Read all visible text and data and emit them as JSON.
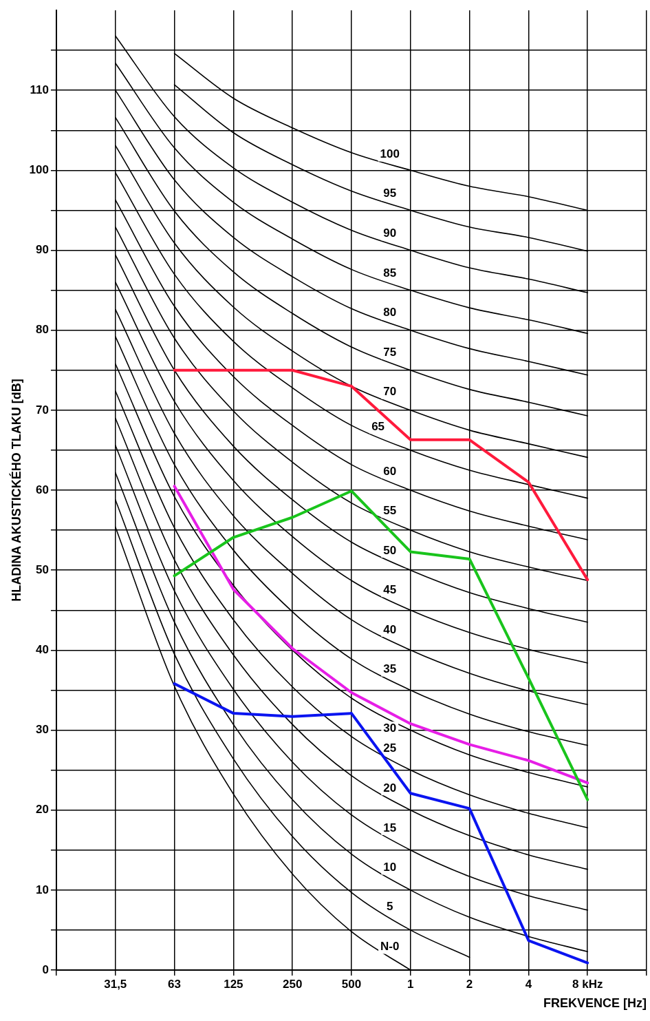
{
  "chart_data": {
    "type": "line",
    "xlabel": "FREKVENCE [Hz]",
    "ylabel": "HLADINA AKUSTICKÉHO TLAKU [dB]",
    "categories": [
      null,
      "31,5",
      "63",
      "125",
      "250",
      "500",
      "1",
      "2",
      "4",
      "8 kHz",
      null
    ],
    "ylim": [
      0,
      120
    ],
    "yticks": [
      0,
      {
        "value": 5,
        "label": null
      },
      10,
      {
        "value": 15,
        "label": null
      },
      20,
      {
        "value": 25,
        "label": null
      },
      30,
      {
        "value": 35,
        "label": null
      },
      40,
      {
        "value": 45,
        "label": null
      },
      50,
      {
        "value": 55,
        "label": null
      },
      60,
      {
        "value": 65,
        "label": null
      },
      70,
      {
        "value": 75,
        "label": null
      },
      80,
      {
        "value": 85,
        "label": null
      },
      90,
      {
        "value": 95,
        "label": null
      },
      100,
      {
        "value": 105,
        "label": null
      },
      110,
      {
        "value": 115,
        "label": null
      }
    ],
    "grid": true,
    "legend": false,
    "marker": "none",
    "line_style": "solid",
    "series": [
      {
        "name": "N-0",
        "color": "#000000",
        "values": [
          null,
          55.4,
          35.5,
          22.0,
          12.0,
          4.8,
          0,
          null,
          null,
          null,
          null
        ]
      },
      {
        "name": "5",
        "color": "#000000",
        "values": [
          null,
          58.8,
          39.5,
          26.4,
          16.7,
          9.7,
          5,
          1.6,
          null,
          null,
          null
        ]
      },
      {
        "name": "10",
        "color": "#000000",
        "values": [
          null,
          62.2,
          43.5,
          30.7,
          21.3,
          14.5,
          10,
          6.6,
          4.2,
          2.3,
          null
        ]
      },
      {
        "name": "15",
        "color": "#000000",
        "values": [
          null,
          65.6,
          47.4,
          35.1,
          26.0,
          19.4,
          15,
          11.7,
          9.3,
          7.5,
          null
        ]
      },
      {
        "name": "20",
        "color": "#000000",
        "values": [
          null,
          69.0,
          51.3,
          39.4,
          30.7,
          24.3,
          20,
          16.8,
          14.4,
          12.6,
          null
        ]
      },
      {
        "name": "25",
        "color": "#000000",
        "values": [
          null,
          72.4,
          55.3,
          43.8,
          35.4,
          29.2,
          25,
          21.9,
          19.6,
          17.8,
          null
        ]
      },
      {
        "name": "30",
        "color": "#000000",
        "values": [
          null,
          75.8,
          59.2,
          48.1,
          40.0,
          34.0,
          30,
          26.9,
          24.7,
          22.9,
          null
        ]
      },
      {
        "name": "35",
        "color": "#000000",
        "values": [
          null,
          79.2,
          63.2,
          52.5,
          44.8,
          38.9,
          35,
          32.0,
          29.8,
          28.1,
          null
        ]
      },
      {
        "name": "40",
        "color": "#000000",
        "values": [
          null,
          82.6,
          67.1,
          56.8,
          49.6,
          43.8,
          40,
          37.1,
          34.9,
          33.2,
          null
        ]
      },
      {
        "name": "45",
        "color": "#000000",
        "values": [
          null,
          86.0,
          71.1,
          61.2,
          54.2,
          48.7,
          45,
          42.2,
          40.1,
          38.4,
          null
        ]
      },
      {
        "name": "50",
        "color": "#000000",
        "values": [
          null,
          89.4,
          75.0,
          65.5,
          58.8,
          53.5,
          50,
          47.2,
          45.2,
          43.5,
          null
        ]
      },
      {
        "name": "55",
        "color": "#000000",
        "values": [
          null,
          92.9,
          79.0,
          69.9,
          63.5,
          58.4,
          55,
          52.3,
          50.4,
          48.7,
          null
        ]
      },
      {
        "name": "60",
        "color": "#000000",
        "values": [
          null,
          96.3,
          83.0,
          74.2,
          68.1,
          63.2,
          60,
          57.4,
          55.5,
          53.8,
          null
        ]
      },
      {
        "name": "65",
        "color": "#000000",
        "values": [
          null,
          99.7,
          87.0,
          78.6,
          72.8,
          68.1,
          65,
          62.5,
          60.7,
          59.0,
          null
        ]
      },
      {
        "name": "70",
        "color": "#000000",
        "values": [
          null,
          103.1,
          90.9,
          82.9,
          77.4,
          73.0,
          70,
          67.5,
          65.8,
          64.1,
          null
        ]
      },
      {
        "name": "75",
        "color": "#000000",
        "values": [
          null,
          106.6,
          94.9,
          87.3,
          82.1,
          77.9,
          75,
          72.6,
          71.0,
          69.3,
          null
        ]
      },
      {
        "name": "80",
        "color": "#000000",
        "values": [
          null,
          110.0,
          98.8,
          91.6,
          86.7,
          82.7,
          80,
          77.7,
          76.1,
          74.4,
          null
        ]
      },
      {
        "name": "85",
        "color": "#000000",
        "values": [
          null,
          113.4,
          102.8,
          96.0,
          91.4,
          87.6,
          85,
          82.8,
          81.3,
          79.6,
          null
        ]
      },
      {
        "name": "90",
        "color": "#000000",
        "values": [
          null,
          116.8,
          106.7,
          100.3,
          96.0,
          92.5,
          90,
          87.8,
          86.4,
          84.7,
          null
        ]
      },
      {
        "name": "95",
        "color": "#000000",
        "values": [
          null,
          null,
          110.7,
          104.7,
          100.7,
          97.4,
          95,
          92.9,
          91.6,
          89.9,
          null
        ]
      },
      {
        "name": "100",
        "color": "#000000",
        "values": [
          null,
          null,
          114.6,
          109.0,
          105.3,
          102.2,
          100,
          98.0,
          96.7,
          95.0,
          null
        ]
      },
      {
        "color": "#ff1a3c",
        "values": [
          null,
          null,
          75,
          75,
          75,
          73,
          66.3,
          66.3,
          61,
          48.8,
          null
        ]
      },
      {
        "color": "#19c41c",
        "values": [
          null,
          null,
          49.3,
          54.1,
          56.6,
          59.9,
          52.3,
          51.4,
          36.5,
          21.3,
          null
        ]
      },
      {
        "color": "#e61ee6",
        "values": [
          null,
          null,
          60.5,
          47.6,
          40.2,
          34.7,
          30.8,
          28.2,
          26.2,
          23.4,
          null
        ]
      },
      {
        "color": "#0a14f0",
        "values": [
          null,
          null,
          35.8,
          32.1,
          31.7,
          32.1,
          22.1,
          20.2,
          3.7,
          0.9,
          null
        ]
      }
    ]
  }
}
